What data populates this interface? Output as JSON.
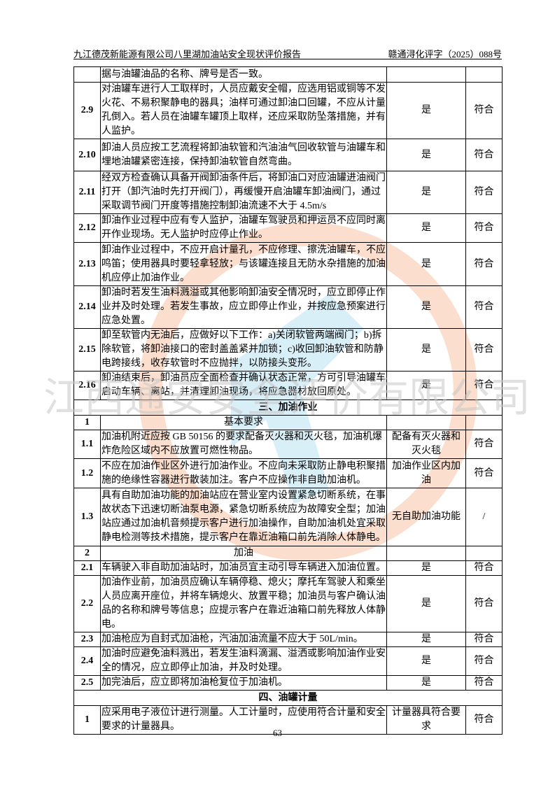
{
  "header": {
    "title": "九江德茂新能源有限公司八里湖加油站安全现状评价报告",
    "doc_number": "赣通浔化评字（2025）088号"
  },
  "watermark": {
    "text": "江西通安安全评价有限公司",
    "colors": {
      "ring": "#f4a070",
      "figure": "#8fd0ea",
      "text": "#c8c8c8"
    }
  },
  "table": {
    "rows": [
      {
        "type": "item",
        "num": "",
        "content": "据与油罐油品的名称、牌号是否一致。",
        "result": "",
        "conclusion": "",
        "h": 22
      },
      {
        "type": "item",
        "num": "2.9",
        "content": "对油罐车进行人工取样时，人员应戴安全帽，应选用铝或铜等不发火花、不易积聚静电的器具；油样可通过卸油口回罐，不应从计量孔倒入。若人员在油罐车罐顶上取样，还应采取防坠落措施，并有人监护。",
        "result": "是",
        "conclusion": "符合",
        "h": 59
      },
      {
        "type": "item",
        "num": "2.10",
        "content": "卸油人员应按工艺流程将卸油软管和汽油油气回收软管与油罐车和埋地油罐紧密连接，保持卸油软管自然弯曲。",
        "result": "是",
        "conclusion": "符合",
        "h": 46
      },
      {
        "type": "item",
        "num": "2.11",
        "content": "经双方检查确认具备开阀卸油条件后，将卸油口对应油罐进油阀门打开（卸汽油时先打开阀门），再缓慢开启油罐车卸油阀门，通过采取调节阀门开度等措施控制卸油流速不大于 4.5m/s",
        "result": "是",
        "conclusion": "符合",
        "h": 60
      },
      {
        "type": "item",
        "num": "2.12",
        "content": "卸油作业过程中应有专人监护，油罐车驾驶员和押运员不应同时离开作业现场。无人监护时应停止作业。",
        "result": "是",
        "conclusion": "符合",
        "h": 40
      },
      {
        "type": "item",
        "num": "2.13",
        "content": "卸油作业过程中，不应开启计量孔，不应修理、擦洗油罐车，不应鸣笛；使用器具时要轻拿轻放；与该罐连接且无防水杂措施的加油机应停止加油作业。",
        "result": "是",
        "conclusion": "符合",
        "h": 62
      },
      {
        "type": "item",
        "num": "2.14",
        "content": "卸油时若发生油料溅溢或其他影响卸油安全情况时，应立即停止作业并及时处理。若发生事故，应立即停止作业，并按应急预案进行应急处置。",
        "result": "是",
        "conclusion": "符合",
        "h": 61
      },
      {
        "type": "item",
        "num": "2.15",
        "content": "卸至软管内无油后，应做好以下工作：a)关闭软管两端阀门；b)拆除软管，将卸油接口的密封盖盖紧并加锁；c)收回卸油软管和防静电跨接线，收存软管时不应抛拌，以防接头变形。",
        "result": "是",
        "conclusion": "符合",
        "h": 61
      },
      {
        "type": "item",
        "num": "2.16",
        "content": "卸油结束后，卸油员应全面检查并确认状态正常，方可引导油罐车启动车辆、离站，并清理卸油现场，将应急器材放回原处。",
        "result": "是",
        "conclusion": "符合",
        "h": 41
      },
      {
        "type": "section",
        "content": "三、加油作业",
        "h": 22
      },
      {
        "type": "sub",
        "num": "1",
        "content": "基本要求",
        "h": 21
      },
      {
        "type": "item",
        "num": "1.1",
        "content": "加油机附近应按 GB 50156 的要求配备灭火器和灭火毯，加油机爆炸危险区域内不应放置可燃性物品。",
        "result": "配备有灭火器和灭火毯",
        "conclusion": "符合",
        "h": 40
      },
      {
        "type": "item",
        "num": "1.2",
        "content": "不应在加油作业区外进行加油作业。不应向未采取防止静电积聚措施的绝缘性容器进行散装加注。客户不应操作非自助加油机。",
        "result": "加油作业区内加油",
        "conclusion": "符合",
        "h": 42
      },
      {
        "type": "item",
        "num": "1.3",
        "content": "具有自助加油功能的加油站应在营业室内设置紧急切断系统，在事故状态下迅速切断油泵电源，紧急切断系统应为故障安全型；加油站应通过加油机音频提示客户进行加油操作，自助加油机处宜采取静电检测等技术措施，提示客户在靠近油箱口前先消除人体静电。",
        "result": "无自助加油功能",
        "conclusion": "/",
        "h": 83
      },
      {
        "type": "sub",
        "num": "2",
        "content": "加油",
        "h": 21
      },
      {
        "type": "item",
        "num": "2.1",
        "content": "车辆驶入非自助加油站时，加油员宜主动引导车辆进入加油位置。",
        "result": "是",
        "conclusion": "符合",
        "h": 21
      },
      {
        "type": "item",
        "num": "2.2",
        "content": "加油作业前，加油员应确认车辆停稳、熄火；摩托车驾驶人和乘坐人员应离开座位，并将车辆熄火、放置平稳；加油员与客户确认油品的名称和牌号等信息；应提示客户在靠近油箱口前先释放人体静电。",
        "result": "是",
        "conclusion": "符合",
        "h": 61
      },
      {
        "type": "item",
        "num": "2.3",
        "content": "加油枪应为自封式加油枪，汽油加油流量不应大于 50L/min。",
        "result": "是",
        "conclusion": "符合",
        "h": 21
      },
      {
        "type": "item",
        "num": "2.4",
        "content": "加油时应避免油料溅出，若发生油料滴漏、溢洒或影响加油作业安全的情况，应立即停止加油，并及时处理。",
        "result": "是",
        "conclusion": "符合",
        "h": 41
      },
      {
        "type": "item",
        "num": "2.5",
        "content": "加完油后，应立即将加油枪复位于加油机。",
        "result": "是",
        "conclusion": "符合",
        "h": 21
      },
      {
        "type": "section",
        "content": "四、油罐计量",
        "h": 22
      },
      {
        "type": "item",
        "num": "1",
        "content": "应采用电子液位计进行测量。人工计量时，应使用符合计量和安全要求的计量器具。",
        "result": "计量器具符合要求",
        "conclusion": "符合",
        "h": 40
      }
    ]
  },
  "footer": {
    "page_number": "63"
  }
}
